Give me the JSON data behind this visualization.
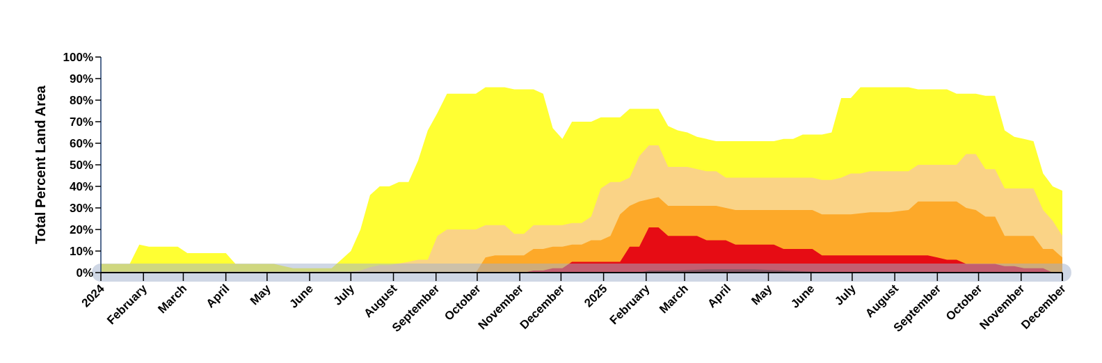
{
  "chart_data": {
    "type": "area",
    "ylabel": "Total Percent Land Area",
    "xlim": [
      "2024-01-01",
      "2025-12-01"
    ],
    "xticks": [
      {
        "value": "2024-01-01",
        "label": "2024"
      },
      {
        "value": "2024-02-01",
        "label": "February"
      },
      {
        "value": "2024-03-01",
        "label": "March"
      },
      {
        "value": "2024-04-01",
        "label": "April"
      },
      {
        "value": "2024-05-01",
        "label": "May"
      },
      {
        "value": "2024-06-01",
        "label": "June"
      },
      {
        "value": "2024-07-01",
        "label": "July"
      },
      {
        "value": "2024-08-01",
        "label": "August"
      },
      {
        "value": "2024-09-01",
        "label": "September"
      },
      {
        "value": "2024-10-01",
        "label": "October"
      },
      {
        "value": "2024-11-01",
        "label": "November"
      },
      {
        "value": "2024-12-01",
        "label": "December"
      },
      {
        "value": "2025-01-01",
        "label": "2025"
      },
      {
        "value": "2025-02-01",
        "label": "February"
      },
      {
        "value": "2025-03-01",
        "label": "March"
      },
      {
        "value": "2025-04-01",
        "label": "April"
      },
      {
        "value": "2025-05-01",
        "label": "May"
      },
      {
        "value": "2025-06-01",
        "label": "June"
      },
      {
        "value": "2025-07-01",
        "label": "July"
      },
      {
        "value": "2025-08-01",
        "label": "August"
      },
      {
        "value": "2025-09-01",
        "label": "September"
      },
      {
        "value": "2025-10-01",
        "label": "October"
      },
      {
        "value": "2025-11-01",
        "label": "November"
      },
      {
        "value": "2025-12-01",
        "label": "December"
      }
    ],
    "ylim": [
      0,
      100
    ],
    "yticks": [
      {
        "value": 0,
        "label": "0%"
      },
      {
        "value": 10,
        "label": "10%"
      },
      {
        "value": 20,
        "label": "20%"
      },
      {
        "value": 30,
        "label": "30%"
      },
      {
        "value": 40,
        "label": "40%"
      },
      {
        "value": 50,
        "label": "50%"
      },
      {
        "value": 60,
        "label": "60%"
      },
      {
        "value": 70,
        "label": "70%"
      },
      {
        "value": 80,
        "label": "80%"
      },
      {
        "value": 90,
        "label": "90%"
      },
      {
        "value": 100,
        "label": "100%"
      }
    ],
    "series": [
      {
        "color": "#ffff33",
        "x": [
          "2024-01-01",
          "2024-01-22",
          "2024-01-29",
          "2024-02-05",
          "2024-02-26",
          "2024-03-04",
          "2024-04-01",
          "2024-04-08",
          "2024-05-06",
          "2024-05-20",
          "2024-06-17",
          "2024-06-24",
          "2024-07-01",
          "2024-07-08",
          "2024-07-15",
          "2024-07-22",
          "2024-07-29",
          "2024-08-05",
          "2024-08-12",
          "2024-08-19",
          "2024-08-26",
          "2024-09-02",
          "2024-09-09",
          "2024-09-30",
          "2024-10-07",
          "2024-10-21",
          "2024-10-28",
          "2024-11-11",
          "2024-11-18",
          "2024-11-25",
          "2024-12-02",
          "2024-12-09",
          "2024-12-23",
          "2024-12-30",
          "2025-01-06",
          "2025-01-13",
          "2025-01-20",
          "2025-02-10",
          "2025-02-17",
          "2025-02-24",
          "2025-03-03",
          "2025-03-10",
          "2025-03-17",
          "2025-03-24",
          "2025-05-05",
          "2025-05-12",
          "2025-05-19",
          "2025-05-26",
          "2025-06-02",
          "2025-06-09",
          "2025-06-16",
          "2025-06-23",
          "2025-06-30",
          "2025-07-07",
          "2025-08-11",
          "2025-08-18",
          "2025-09-08",
          "2025-09-15",
          "2025-09-29",
          "2025-10-06",
          "2025-10-13",
          "2025-10-20",
          "2025-10-27",
          "2025-11-03",
          "2025-11-10",
          "2025-11-17",
          "2025-11-24",
          "2025-12-01"
        ],
        "values": [
          4,
          4,
          13,
          12,
          12,
          9,
          9,
          4,
          4,
          2,
          2,
          6,
          10,
          20,
          36,
          40,
          40,
          42,
          42,
          52,
          66,
          74,
          83,
          83,
          86,
          86,
          85,
          85,
          83,
          67,
          62,
          70,
          70,
          72,
          72,
          72,
          76,
          76,
          68,
          66,
          65,
          63,
          62,
          61,
          61,
          62,
          62,
          64,
          64,
          64,
          65,
          81,
          81,
          86,
          86,
          85,
          85,
          83,
          83,
          82,
          82,
          66,
          63,
          62,
          61,
          46,
          40,
          38
        ]
      },
      {
        "color": "#fad386",
        "x": [
          "2024-01-01",
          "2024-07-01",
          "2024-07-08",
          "2024-07-15",
          "2024-07-22",
          "2024-07-29",
          "2024-08-12",
          "2024-08-19",
          "2024-08-26",
          "2024-09-02",
          "2024-09-09",
          "2024-09-30",
          "2024-10-07",
          "2024-10-21",
          "2024-10-28",
          "2024-11-04",
          "2024-11-11",
          "2024-12-02",
          "2024-12-09",
          "2024-12-16",
          "2024-12-23",
          "2024-12-30",
          "2025-01-06",
          "2025-01-13",
          "2025-01-20",
          "2025-01-27",
          "2025-02-03",
          "2025-02-10",
          "2025-02-17",
          "2025-03-03",
          "2025-03-17",
          "2025-03-24",
          "2025-03-31",
          "2025-06-02",
          "2025-06-09",
          "2025-06-16",
          "2025-06-23",
          "2025-06-30",
          "2025-07-07",
          "2025-07-14",
          "2025-08-11",
          "2025-08-18",
          "2025-09-15",
          "2025-09-22",
          "2025-09-29",
          "2025-10-06",
          "2025-10-13",
          "2025-10-20",
          "2025-11-10",
          "2025-11-17",
          "2025-11-24",
          "2025-12-01"
        ],
        "values": [
          0.5,
          0.5,
          1,
          2.5,
          3.5,
          3.5,
          5,
          6,
          6,
          17,
          20,
          20,
          22,
          22,
          18,
          18,
          22,
          22,
          23,
          23,
          26,
          39,
          42,
          42,
          44,
          54,
          59,
          59,
          49,
          49,
          47,
          47,
          44,
          44,
          43,
          43,
          44,
          46,
          46,
          47,
          47,
          50,
          50,
          55,
          55,
          48,
          48,
          39,
          39,
          29,
          24,
          17
        ]
      },
      {
        "color": "#fda929",
        "x": [
          "2024-01-01",
          "2024-09-30",
          "2024-10-07",
          "2024-10-14",
          "2024-11-04",
          "2024-11-11",
          "2024-11-18",
          "2024-11-25",
          "2024-12-02",
          "2024-12-09",
          "2024-12-16",
          "2024-12-23",
          "2024-12-30",
          "2025-01-06",
          "2025-01-13",
          "2025-01-20",
          "2025-01-27",
          "2025-02-03",
          "2025-02-10",
          "2025-02-17",
          "2025-03-17",
          "2025-03-24",
          "2025-03-31",
          "2025-04-07",
          "2025-06-02",
          "2025-06-09",
          "2025-06-30",
          "2025-07-14",
          "2025-07-28",
          "2025-08-11",
          "2025-08-18",
          "2025-09-15",
          "2025-09-22",
          "2025-09-29",
          "2025-10-06",
          "2025-10-13",
          "2025-10-20",
          "2025-11-10",
          "2025-11-17",
          "2025-11-24",
          "2025-12-01"
        ],
        "values": [
          0,
          0,
          7,
          8,
          8,
          11,
          11,
          12,
          12,
          13,
          13,
          15,
          15,
          17,
          27,
          31,
          33,
          34,
          35,
          31,
          31,
          31,
          30,
          29,
          29,
          27,
          27,
          28,
          28,
          29,
          33,
          33,
          30,
          29,
          26,
          26,
          17,
          17,
          11,
          11,
          7
        ]
      },
      {
        "color": "#e60c14",
        "x": [
          "2024-01-01",
          "2024-11-04",
          "2024-11-11",
          "2024-11-18",
          "2024-11-25",
          "2024-12-02",
          "2024-12-09",
          "2025-01-13",
          "2025-01-20",
          "2025-01-27",
          "2025-02-03",
          "2025-02-10",
          "2025-02-17",
          "2025-03-10",
          "2025-03-17",
          "2025-03-31",
          "2025-04-07",
          "2025-05-05",
          "2025-05-12",
          "2025-06-02",
          "2025-06-09",
          "2025-08-25",
          "2025-09-01",
          "2025-09-08",
          "2025-09-15",
          "2025-09-22",
          "2025-10-13",
          "2025-10-20",
          "2025-10-27",
          "2025-11-03",
          "2025-11-17",
          "2025-11-24",
          "2025-12-01"
        ],
        "values": [
          0,
          0,
          1,
          1,
          2,
          2,
          5,
          5,
          12,
          12,
          21,
          21,
          17,
          17,
          15,
          15,
          13,
          13,
          11,
          11,
          8,
          8,
          7,
          6,
          6,
          4,
          4,
          3,
          3,
          2,
          2,
          0,
          0
        ]
      },
      {
        "color": "#730000",
        "x": [
          "2024-01-01",
          "2025-01-27",
          "2025-02-03",
          "2025-02-24",
          "2025-03-17",
          "2025-04-21",
          "2025-05-12",
          "2025-06-02",
          "2025-06-09",
          "2025-12-01"
        ],
        "values": [
          0,
          0,
          1,
          1,
          1.5,
          1.5,
          1,
          0.5,
          0,
          0
        ]
      }
    ]
  }
}
